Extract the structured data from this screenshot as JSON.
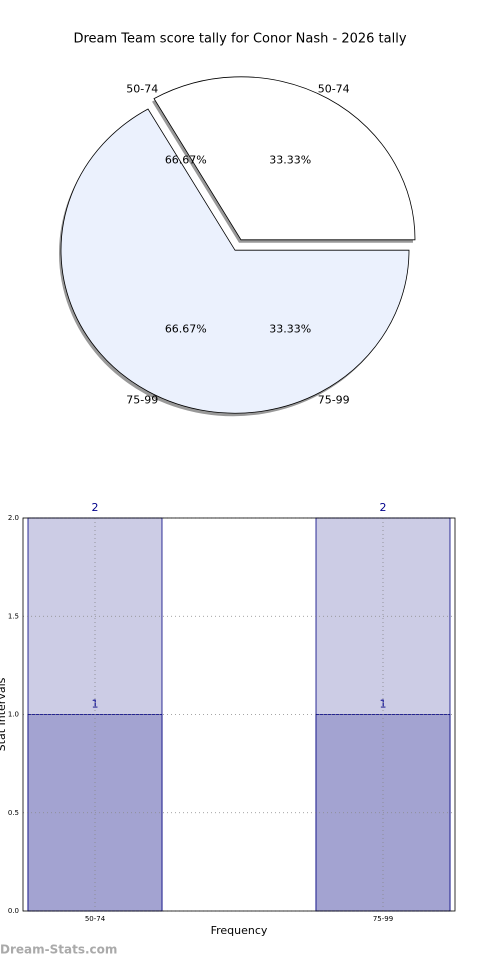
{
  "chart_data": [
    {
      "type": "pie",
      "title": "Dream Team score tally for Conor Nash - 2026 tally",
      "categories": [
        "50-74",
        "75-99"
      ],
      "values": [
        33.33,
        66.67
      ],
      "value_labels": [
        "33.33%",
        "66.67%"
      ],
      "colors": [
        "#ffffff",
        "#ebf1fd"
      ],
      "shadow": true
    },
    {
      "type": "pie",
      "categories": [
        "50-74",
        "75-99"
      ],
      "values": [
        66.67,
        33.33
      ],
      "value_labels": [
        "66.67%",
        "33.33%"
      ]
    },
    {
      "type": "bar",
      "categories": [
        "50-74",
        null,
        "75-99"
      ],
      "series": [
        {
          "color": "#ccccE5",
          "values": [
            2,
            null,
            2
          ]
        },
        {
          "color": "#a3a3d1",
          "values": [
            1,
            null,
            1
          ]
        }
      ],
      "x_label": "Frequency",
      "y_label": "Stat Intervals",
      "ylim": [
        0,
        2
      ],
      "yticks": [
        {
          "value": 0,
          "label": "0.0"
        },
        {
          "value": 0.5,
          "label": "0.5"
        },
        {
          "value": 1,
          "label": "1.0"
        },
        {
          "value": 1.5,
          "label": "1.5"
        },
        {
          "value": 2,
          "label": "2.0"
        }
      ],
      "grid": true
    },
    {
      "type": "watermark",
      "text": "Dream-Stats.com"
    }
  ]
}
